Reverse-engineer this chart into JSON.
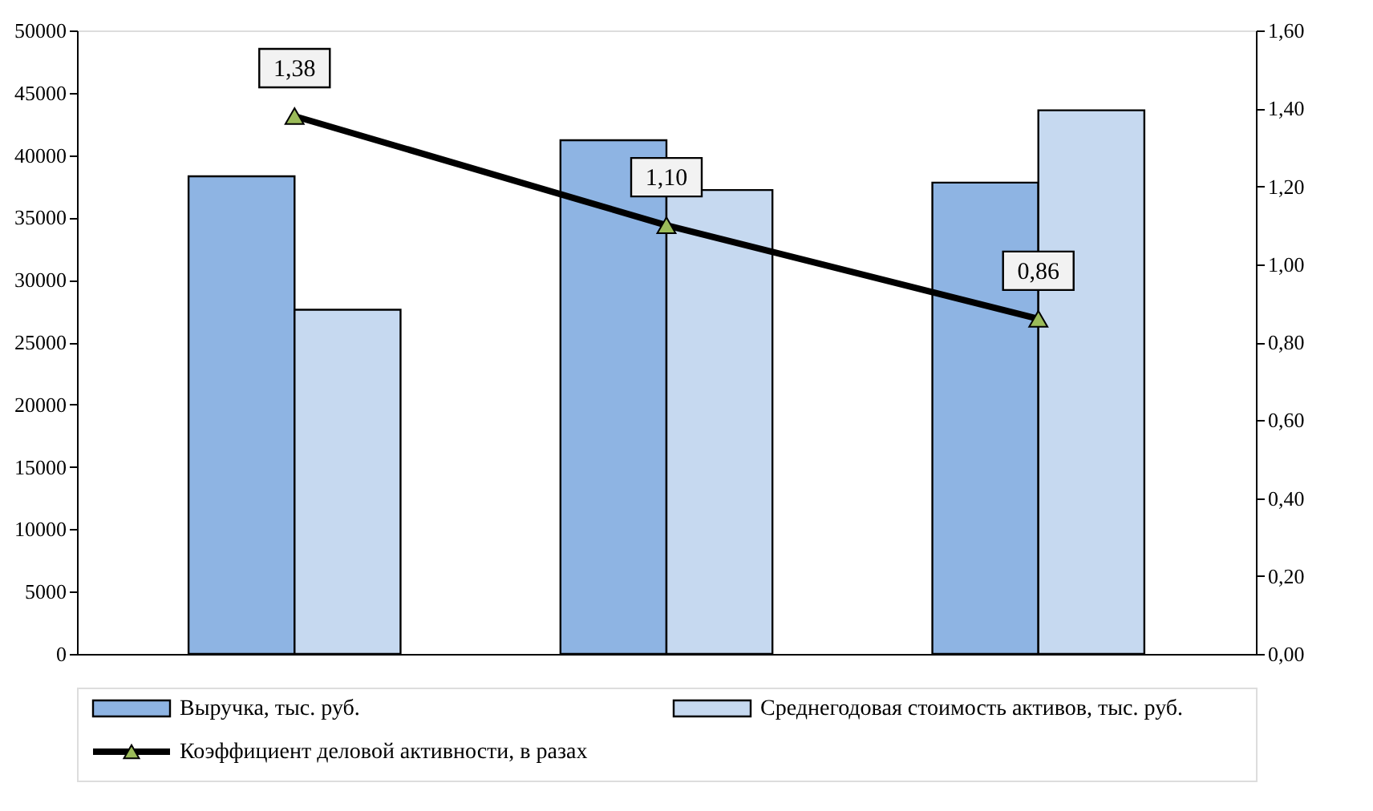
{
  "chart_data": {
    "type": "bar",
    "categories": [
      null,
      null,
      null
    ],
    "series": [
      {
        "name": "Выручка, тыс. руб.",
        "color": "#8eb4e3",
        "values": [
          38300,
          41200,
          37800
        ]
      },
      {
        "name": "Среднегодовая стоимость активов, тыс. руб.",
        "color": "#c6d9f0",
        "values": [
          27600,
          37200,
          43600
        ]
      },
      {
        "name": "Коэффициент деловой активности, в разах",
        "type": "line",
        "axis": "y2",
        "color": "#000000",
        "marker": "triangle",
        "colors": [
          "#9bbb59",
          "#9bbb59",
          "#9bbb59"
        ],
        "values": [
          1.38,
          1.1,
          0.86
        ],
        "value_labels": [
          "1,38",
          "1,10",
          "0,86"
        ]
      }
    ],
    "ylim": [
      0,
      50000
    ],
    "yticks": [
      0,
      5000,
      10000,
      15000,
      20000,
      25000,
      30000,
      35000,
      40000,
      45000,
      50000
    ],
    "y2lim": [
      0,
      1.6
    ],
    "y2ticks": [
      {
        "value": 0,
        "label": "0,00"
      },
      {
        "value": 0.2,
        "label": "0,20"
      },
      {
        "value": 0.4,
        "label": "0,40"
      },
      {
        "value": 0.6,
        "label": "0,60"
      },
      {
        "value": 0.8,
        "label": "0,80"
      },
      {
        "value": 1.0,
        "label": "1,00"
      },
      {
        "value": 1.2,
        "label": "1,20"
      },
      {
        "value": 1.4,
        "label": "1,40"
      },
      {
        "value": 1.6,
        "label": "1,60"
      }
    ],
    "grid": false,
    "legend": "bottom",
    "tick_labels": "y"
  }
}
